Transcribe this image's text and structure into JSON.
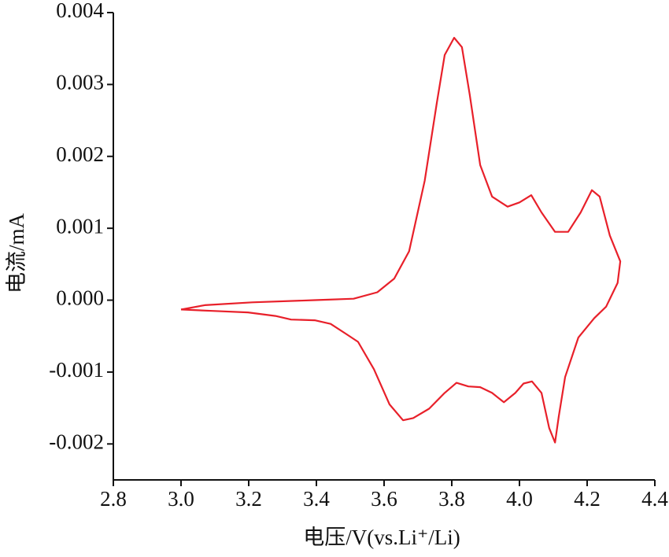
{
  "chart_data": {
    "type": "line",
    "xlabel": "电压/V(vs.Li⁺/Li)",
    "ylabel": "电流/mA",
    "xlim": [
      2.8,
      4.4
    ],
    "ylim": [
      -0.0025,
      0.004
    ],
    "xticks": [
      2.8,
      {
        "value": 3,
        "label": "3.0"
      },
      3.2,
      3.4,
      3.6,
      3.8,
      {
        "value": 4,
        "label": "4.0"
      },
      4.2,
      4.4
    ],
    "yticks": [
      -0.002,
      -0.001,
      {
        "value": 0,
        "label": "0.000"
      },
      0.001,
      0.002,
      0.003,
      0.004
    ],
    "x": [
      3.0,
      3.07,
      3.21,
      3.395,
      3.51,
      3.58,
      3.63,
      3.674,
      3.72,
      3.756,
      3.779,
      3.807,
      3.83,
      3.853,
      3.884,
      3.919,
      3.965,
      4.0,
      4.035,
      4.065,
      4.105,
      4.144,
      4.181,
      4.214,
      4.237,
      4.267,
      4.298,
      4.29,
      4.256,
      4.221,
      4.174,
      4.135,
      4.116,
      4.105,
      4.088,
      4.065,
      4.037,
      4.012,
      3.988,
      3.954,
      3.919,
      3.884,
      3.849,
      3.814,
      3.779,
      3.733,
      3.686,
      3.656,
      3.616,
      3.57,
      3.523,
      3.488,
      3.442,
      3.395,
      3.325,
      3.279,
      3.198,
      3.093,
      3.0
    ],
    "series": [
      {
        "color": "#e8202a",
        "values": [
          -0.00013,
          -7e-05,
          -3e-05,
          0.0,
          2e-05,
          0.00011,
          0.0003,
          0.00068,
          0.00166,
          0.00275,
          0.00341,
          0.00365,
          0.00352,
          0.00286,
          0.00188,
          0.00144,
          0.0013,
          0.00136,
          0.00146,
          0.00122,
          0.00095,
          0.00095,
          0.00122,
          0.00153,
          0.00144,
          0.0009,
          0.00054,
          0.00024,
          -9e-05,
          -0.00025,
          -0.00052,
          -0.00107,
          -0.00162,
          -0.00198,
          -0.00178,
          -0.00129,
          -0.00113,
          -0.00116,
          -0.00129,
          -0.00142,
          -0.00129,
          -0.00121,
          -0.0012,
          -0.00115,
          -0.00129,
          -0.00151,
          -0.00164,
          -0.00167,
          -0.00145,
          -0.00096,
          -0.00058,
          -0.00047,
          -0.00033,
          -0.00028,
          -0.00027,
          -0.00022,
          -0.00017,
          -0.00015,
          -0.00013
        ]
      }
    ]
  }
}
